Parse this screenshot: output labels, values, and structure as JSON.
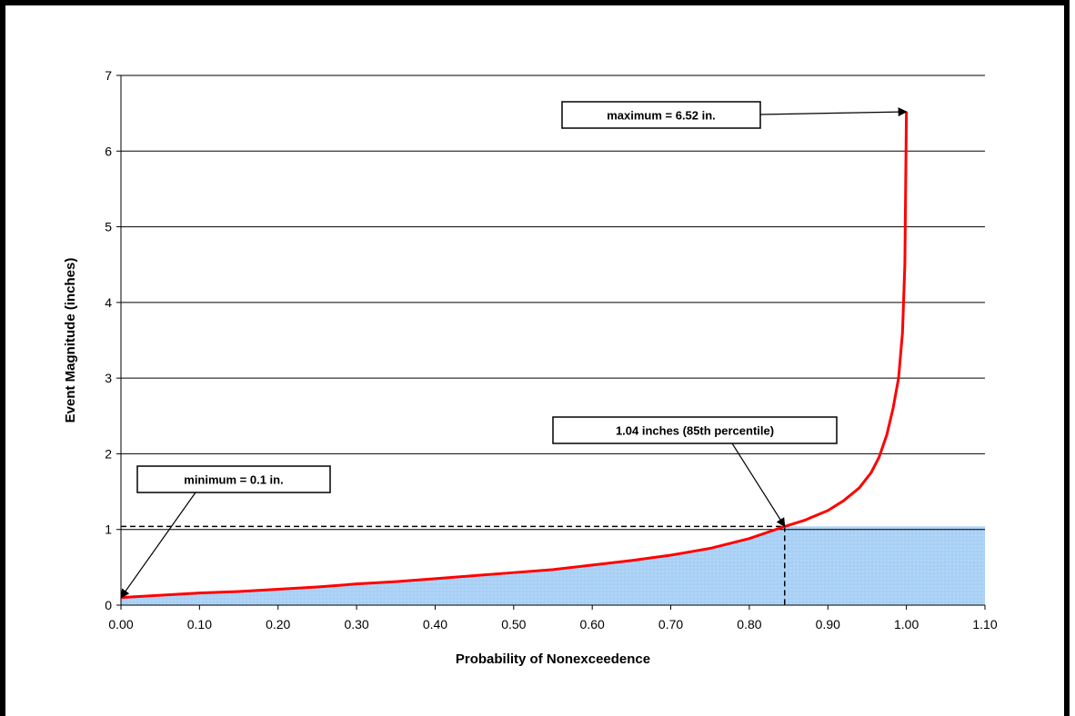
{
  "chart_data": {
    "type": "line",
    "title": "",
    "xlabel": "Probability of Nonexceedence",
    "ylabel": "Event Magnitude (inches)",
    "xlim": [
      0,
      1.1
    ],
    "ylim": [
      0,
      7
    ],
    "x_ticks": [
      "0.00",
      "0.10",
      "0.20",
      "0.30",
      "0.40",
      "0.50",
      "0.60",
      "0.70",
      "0.80",
      "0.90",
      "1.00",
      "1.10"
    ],
    "y_ticks": [
      "0",
      "1",
      "2",
      "3",
      "4",
      "5",
      "6",
      "7"
    ],
    "grid": "horizontal",
    "series": [
      {
        "color": "#ff0000",
        "x": [
          0.0,
          0.05,
          0.1,
          0.15,
          0.2,
          0.25,
          0.3,
          0.35,
          0.4,
          0.45,
          0.5,
          0.55,
          0.6,
          0.65,
          0.7,
          0.75,
          0.8,
          0.845,
          0.87,
          0.9,
          0.92,
          0.94,
          0.955,
          0.965,
          0.975,
          0.983,
          0.99,
          0.995,
          0.998,
          1.0
        ],
        "y": [
          0.1,
          0.13,
          0.16,
          0.18,
          0.21,
          0.24,
          0.28,
          0.31,
          0.35,
          0.39,
          0.43,
          0.47,
          0.53,
          0.59,
          0.66,
          0.75,
          0.88,
          1.04,
          1.12,
          1.25,
          1.38,
          1.55,
          1.75,
          1.95,
          2.25,
          2.6,
          3.0,
          3.6,
          4.5,
          6.52
        ]
      }
    ],
    "shaded_region": {
      "color": "#a8d0f5",
      "x_from": 0.845,
      "x_to": 1.1,
      "y": 1.04
    },
    "reference_point": {
      "x": 0.845,
      "y": 1.04
    },
    "annotations": [
      {
        "text": "maximum = 6.52 in.",
        "x": 1.0,
        "y": 6.52
      },
      {
        "text": "1.04 inches (85th percentile)",
        "x": 0.845,
        "y": 1.04
      },
      {
        "text": "minimum = 0.1 in.",
        "x": 0.0,
        "y": 0.1
      }
    ]
  }
}
